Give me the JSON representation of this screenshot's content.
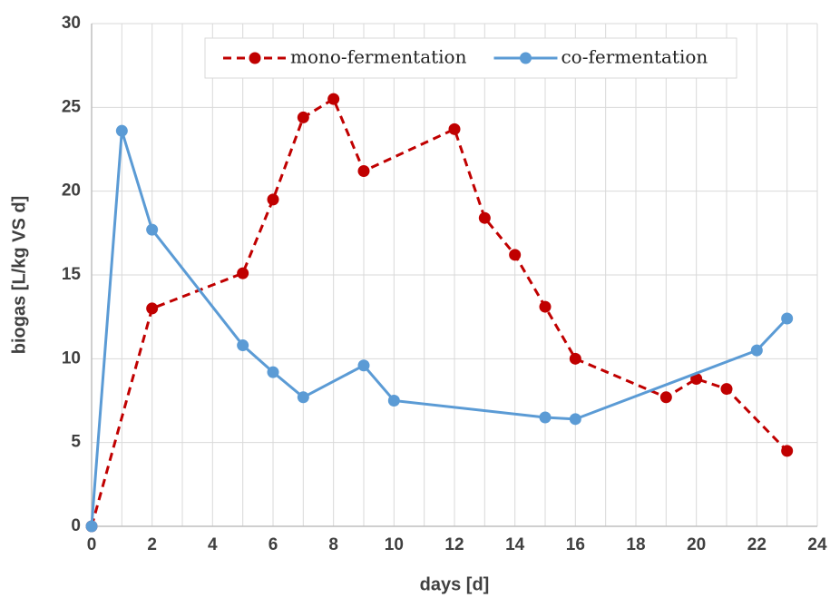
{
  "chart_data": {
    "type": "line",
    "x_label": "days [d]",
    "y_label": "biogas [L/kg VS d]",
    "xlim": [
      0,
      24
    ],
    "xticks": [
      0,
      2,
      4,
      6,
      8,
      10,
      12,
      14,
      16,
      18,
      20,
      22,
      24
    ],
    "ylim": [
      0,
      30
    ],
    "yticks": [
      0,
      5,
      10,
      15,
      20,
      25,
      30
    ],
    "grid": true,
    "x_minor_grid": true,
    "legend": "top",
    "series": [
      {
        "name": "mono-fermentation",
        "color": "#c00000",
        "dashed": true,
        "x": [
          0,
          2,
          5,
          6,
          7,
          8,
          9,
          12,
          13,
          14,
          15,
          16,
          19,
          20,
          21,
          23
        ],
        "values": [
          0,
          13.0,
          15.1,
          19.5,
          24.4,
          25.5,
          21.2,
          23.7,
          18.4,
          16.2,
          13.1,
          10.0,
          7.7,
          8.8,
          8.2,
          4.5
        ]
      },
      {
        "name": "co-fermentation",
        "color": "#5b9bd5",
        "dashed": false,
        "x": [
          0,
          1,
          2,
          5,
          6,
          7,
          9,
          10,
          15,
          16,
          22,
          23
        ],
        "values": [
          0,
          23.6,
          17.7,
          10.8,
          9.2,
          7.7,
          9.6,
          7.5,
          6.5,
          6.4,
          10.5,
          12.4
        ]
      }
    ]
  }
}
